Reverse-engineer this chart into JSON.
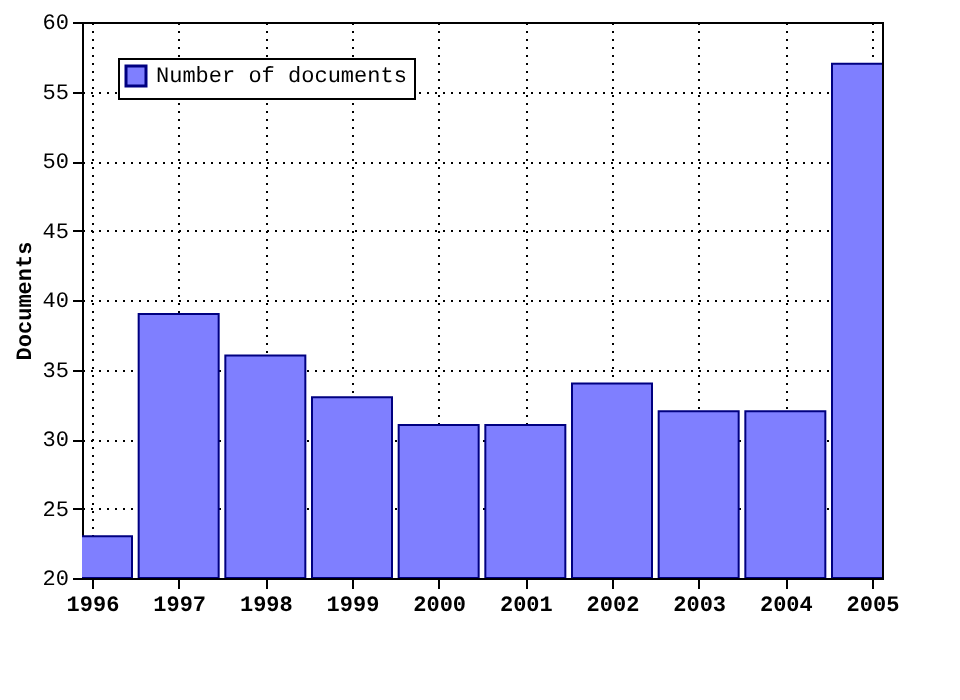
{
  "chart_data": {
    "type": "bar",
    "ylabel": "Documents",
    "x": [
      1996,
      1997,
      1998,
      1999,
      2000,
      2001,
      2002,
      2003,
      2004,
      2005
    ],
    "series": [
      {
        "name": "Number of documents",
        "color": "#7f7fff",
        "values": [
          23,
          39,
          36,
          33,
          31,
          31,
          34,
          32,
          32,
          57
        ]
      }
    ],
    "xlim": [
      1996,
      2005
    ],
    "xticks": [
      1996,
      1997,
      1998,
      1999,
      2000,
      2001,
      2002,
      2003,
      2004,
      2005
    ],
    "ylim": [
      20,
      60
    ],
    "yticks": [
      20,
      25,
      30,
      35,
      40,
      45,
      50,
      55,
      60
    ],
    "grid": true,
    "legend": "top left"
  }
}
